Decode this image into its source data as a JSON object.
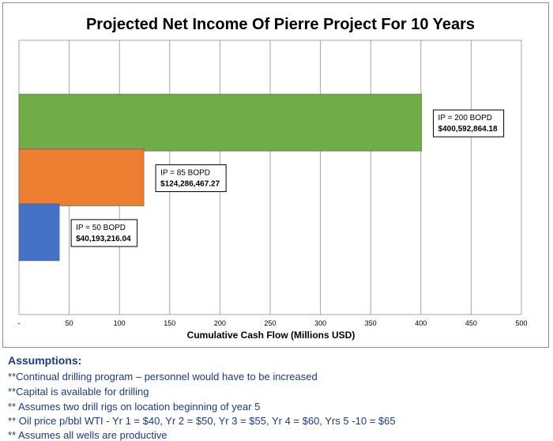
{
  "chart_data": {
    "type": "bar",
    "orientation": "horizontal",
    "title": "Projected Net Income Of Pierre Project For 10 Years",
    "xlabel": "Cumulative Cash Flow (Millions USD)",
    "ylabel": "",
    "xlim": [
      0,
      500
    ],
    "xticks": [
      "-",
      "50",
      "100",
      "150",
      "200",
      "250",
      "300",
      "350",
      "400",
      "450",
      "500"
    ],
    "grid": true,
    "bars": [
      {
        "value": 400.59,
        "color": "#70ad47",
        "label_line1": "IP = 200 BOPD",
        "label_line2": "$400,592,864.18"
      },
      {
        "value": 124.29,
        "color": "#ed7d31",
        "label_line1": "IP = 85 BOPD",
        "label_line2": "$124,286,467.27"
      },
      {
        "value": 40.19,
        "color": "#4472c4",
        "label_line1": "IP = 50 BOPD",
        "label_line2": "$40,193,216.04"
      }
    ]
  },
  "assumptions": {
    "title": "Assumptions:",
    "items": [
      "**Continual drilling program – personnel would have to be increased",
      "**Capital is available for drilling",
      "** Assumes two drill rigs on location beginning of year 5",
      "** Oil price p/bbl WTI - Yr 1 = $40, Yr 2 = $50, Yr 3 = $55, Yr 4 = $60, Yrs 5 -10 = $65",
      "** Assumes all wells are productive"
    ]
  }
}
